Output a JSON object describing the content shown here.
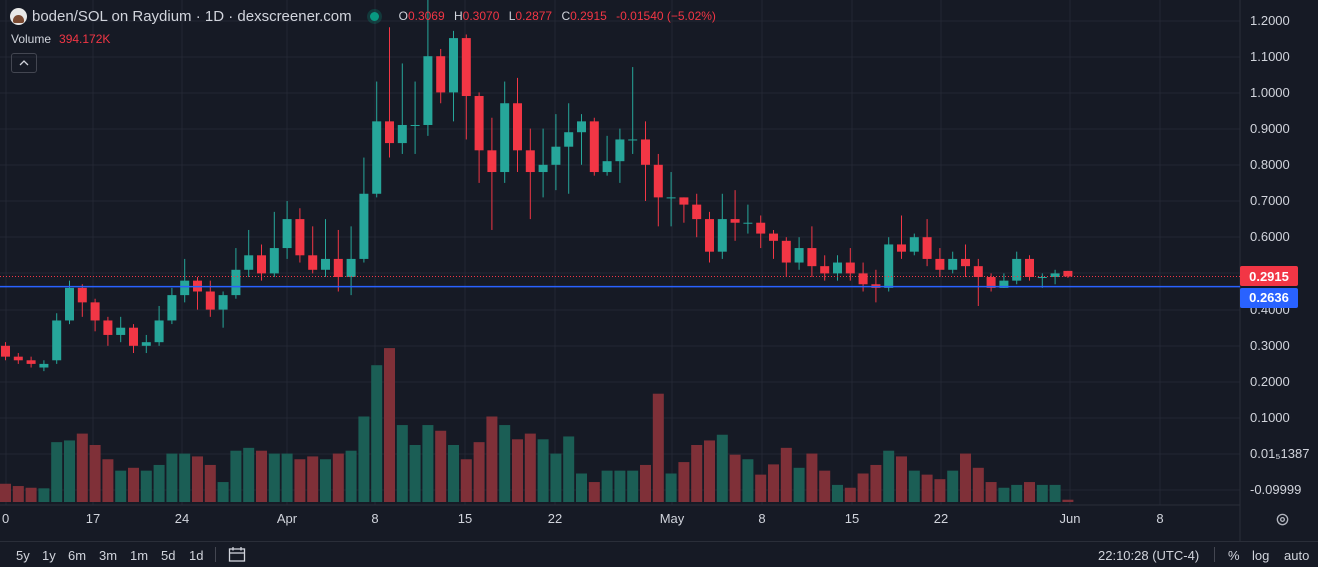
{
  "header": {
    "title": "boden/SOL on Raydium · 1D · dexscreener.com",
    "ohlc": [
      {
        "key": "O",
        "value": "0.3069"
      },
      {
        "key": "H",
        "value": "0.3070"
      },
      {
        "key": "L",
        "value": "0.2877"
      },
      {
        "key": "C",
        "value": "0.2915"
      },
      {
        "key": "",
        "value": "-0.01540 (−5.02%)"
      }
    ],
    "volume_label": "Volume",
    "volume_value": "394.172K"
  },
  "price_tags": {
    "last": "0.2915",
    "line": "0.2636"
  },
  "colors": {
    "up": "#26a69a",
    "down": "#f23645",
    "up_vol": "#1b5e55",
    "down_vol": "#7f3038",
    "line": "#2962ff",
    "last_tag": "#f23645",
    "line_tag": "#2962ff",
    "background": "#161a25"
  },
  "bottom": {
    "ranges": [
      "5y",
      "1y",
      "6m",
      "3m",
      "1m",
      "5d",
      "1d"
    ],
    "time": "22:10:28 (UTC-4)",
    "options": [
      "%",
      "log",
      "auto"
    ]
  },
  "chart_data": {
    "type": "candlestick",
    "x_tick_labels": [
      "0",
      "17",
      "24",
      "Apr",
      "8",
      "15",
      "22",
      "May",
      "8",
      "15",
      "22",
      "Jun",
      "8"
    ],
    "y_tick_labels": [
      "1.2000",
      "1.1000",
      "1.0000",
      "0.9000",
      "0.8000",
      "0.7000",
      "0.6000",
      "0.5000",
      "0.4000",
      "0.3000",
      "0.2000",
      "0.1000",
      "0.01₅1387",
      "-0.09999"
    ],
    "horizontal_line": 0.2636,
    "last_price": 0.2915,
    "candles": [
      [
        0.1,
        0.07,
        0.11,
        0.06,
        3.2
      ],
      [
        0.07,
        0.06,
        0.08,
        0.05,
        2.8
      ],
      [
        0.06,
        0.05,
        0.07,
        0.04,
        2.5
      ],
      [
        0.04,
        0.05,
        0.06,
        0.03,
        2.4
      ],
      [
        0.06,
        0.17,
        0.19,
        0.05,
        10.5
      ],
      [
        0.17,
        0.26,
        0.28,
        0.16,
        10.8
      ],
      [
        0.26,
        0.22,
        0.27,
        0.18,
        12.0
      ],
      [
        0.22,
        0.17,
        0.23,
        0.14,
        10.0
      ],
      [
        0.17,
        0.13,
        0.18,
        0.1,
        7.5
      ],
      [
        0.13,
        0.15,
        0.18,
        0.11,
        5.5
      ],
      [
        0.15,
        0.1,
        0.16,
        0.08,
        6.0
      ],
      [
        0.1,
        0.11,
        0.13,
        0.08,
        5.5
      ],
      [
        0.11,
        0.17,
        0.21,
        0.1,
        6.5
      ],
      [
        0.17,
        0.24,
        0.26,
        0.16,
        8.5
      ],
      [
        0.24,
        0.28,
        0.34,
        0.22,
        8.5
      ],
      [
        0.28,
        0.25,
        0.29,
        0.2,
        8.0
      ],
      [
        0.25,
        0.2,
        0.28,
        0.18,
        6.5
      ],
      [
        0.2,
        0.24,
        0.25,
        0.15,
        3.5
      ],
      [
        0.24,
        0.31,
        0.37,
        0.23,
        9.0
      ],
      [
        0.31,
        0.35,
        0.42,
        0.29,
        9.5
      ],
      [
        0.35,
        0.3,
        0.38,
        0.28,
        9.0
      ],
      [
        0.3,
        0.37,
        0.47,
        0.29,
        8.5
      ],
      [
        0.37,
        0.45,
        0.5,
        0.34,
        8.5
      ],
      [
        0.45,
        0.35,
        0.48,
        0.33,
        7.5
      ],
      [
        0.35,
        0.31,
        0.43,
        0.3,
        8.0
      ],
      [
        0.31,
        0.34,
        0.45,
        0.29,
        7.5
      ],
      [
        0.34,
        0.29,
        0.42,
        0.25,
        8.5
      ],
      [
        0.29,
        0.34,
        0.43,
        0.24,
        9.0
      ],
      [
        0.34,
        0.52,
        0.62,
        0.33,
        15.0
      ],
      [
        0.52,
        0.72,
        0.83,
        0.51,
        24.0
      ],
      [
        0.72,
        0.66,
        0.98,
        0.62,
        27.0
      ],
      [
        0.66,
        0.71,
        0.88,
        0.63,
        13.5
      ],
      [
        0.71,
        0.71,
        0.83,
        0.63,
        10.0
      ],
      [
        0.71,
        0.9,
        1.08,
        0.68,
        13.5
      ],
      [
        0.9,
        0.8,
        0.92,
        0.77,
        12.5
      ],
      [
        0.8,
        0.95,
        0.97,
        0.72,
        10.0
      ],
      [
        0.95,
        0.79,
        0.96,
        0.67,
        7.5
      ],
      [
        0.79,
        0.64,
        0.8,
        0.55,
        10.5
      ],
      [
        0.64,
        0.58,
        0.73,
        0.42,
        15.0
      ],
      [
        0.58,
        0.77,
        0.83,
        0.55,
        13.5
      ],
      [
        0.77,
        0.64,
        0.84,
        0.58,
        11.0
      ],
      [
        0.64,
        0.58,
        0.7,
        0.45,
        12.0
      ],
      [
        0.58,
        0.6,
        0.7,
        0.51,
        11.0
      ],
      [
        0.6,
        0.65,
        0.74,
        0.53,
        8.5
      ],
      [
        0.65,
        0.69,
        0.77,
        0.52,
        11.5
      ],
      [
        0.69,
        0.72,
        0.74,
        0.6,
        5.0
      ],
      [
        0.72,
        0.58,
        0.73,
        0.57,
        3.5
      ],
      [
        0.58,
        0.61,
        0.68,
        0.57,
        5.5
      ],
      [
        0.61,
        0.67,
        0.7,
        0.55,
        5.5
      ],
      [
        0.67,
        0.67,
        0.87,
        0.63,
        5.5
      ],
      [
        0.67,
        0.6,
        0.72,
        0.5,
        6.5
      ],
      [
        0.6,
        0.51,
        0.63,
        0.43,
        19.0
      ],
      [
        0.51,
        0.51,
        0.58,
        0.43,
        5.0
      ],
      [
        0.51,
        0.49,
        0.51,
        0.44,
        7.0
      ],
      [
        0.49,
        0.45,
        0.52,
        0.4,
        10.0
      ],
      [
        0.45,
        0.36,
        0.47,
        0.33,
        10.8
      ],
      [
        0.36,
        0.45,
        0.52,
        0.34,
        11.8
      ],
      [
        0.45,
        0.44,
        0.53,
        0.39,
        8.3
      ],
      [
        0.44,
        0.44,
        0.49,
        0.41,
        7.5
      ],
      [
        0.44,
        0.41,
        0.46,
        0.37,
        4.8
      ],
      [
        0.41,
        0.39,
        0.42,
        0.34,
        6.6
      ],
      [
        0.39,
        0.33,
        0.4,
        0.29,
        9.5
      ],
      [
        0.33,
        0.37,
        0.4,
        0.31,
        6.0
      ],
      [
        0.37,
        0.32,
        0.43,
        0.29,
        8.5
      ],
      [
        0.32,
        0.3,
        0.35,
        0.28,
        5.5
      ],
      [
        0.3,
        0.33,
        0.35,
        0.28,
        3.0
      ],
      [
        0.33,
        0.3,
        0.37,
        0.28,
        2.5
      ],
      [
        0.3,
        0.27,
        0.33,
        0.25,
        5.0
      ],
      [
        0.27,
        0.26,
        0.31,
        0.22,
        6.5
      ],
      [
        0.26,
        0.38,
        0.4,
        0.25,
        9.0
      ],
      [
        0.38,
        0.36,
        0.46,
        0.34,
        8.0
      ],
      [
        0.36,
        0.4,
        0.41,
        0.35,
        5.5
      ],
      [
        0.4,
        0.34,
        0.45,
        0.32,
        4.8
      ],
      [
        0.34,
        0.31,
        0.37,
        0.29,
        4.0
      ],
      [
        0.31,
        0.34,
        0.36,
        0.3,
        5.5
      ],
      [
        0.34,
        0.32,
        0.38,
        0.29,
        8.5
      ],
      [
        0.32,
        0.29,
        0.34,
        0.21,
        6.0
      ],
      [
        0.29,
        0.26,
        0.3,
        0.25,
        3.5
      ],
      [
        0.26,
        0.28,
        0.3,
        0.26,
        2.5
      ],
      [
        0.28,
        0.34,
        0.36,
        0.27,
        3.0
      ],
      [
        0.34,
        0.29,
        0.35,
        0.28,
        3.5
      ],
      [
        0.29,
        0.29,
        0.3,
        0.26,
        3.0
      ],
      [
        0.29,
        0.3,
        0.31,
        0.27,
        3.0
      ],
      [
        0.3069,
        0.2915,
        0.307,
        0.2877,
        0.4
      ]
    ]
  }
}
